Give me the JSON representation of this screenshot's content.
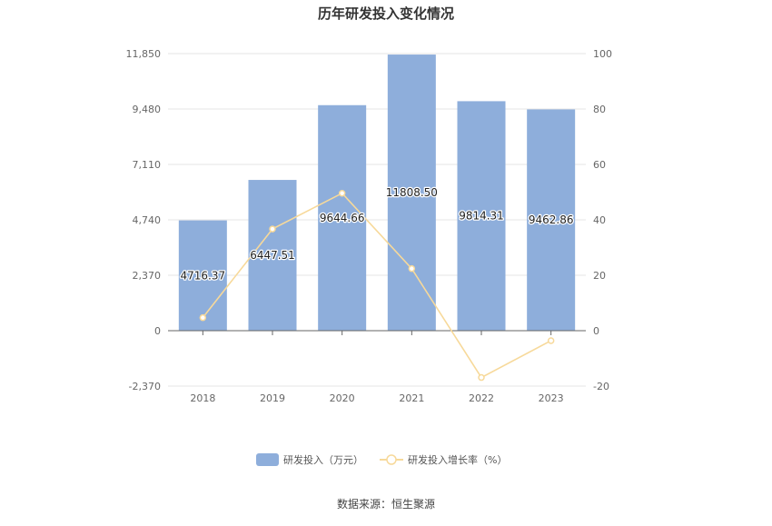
{
  "chart_data": {
    "type": "bar",
    "title": "历年研发投入变化情况",
    "categories": [
      "2018",
      "2019",
      "2020",
      "2021",
      "2022",
      "2023"
    ],
    "series": [
      {
        "name": "研发投入（万元）",
        "type": "bar",
        "axis": "left",
        "values": [
          4716.37,
          6447.51,
          9644.66,
          11808.5,
          9814.31,
          9462.86
        ],
        "labels": [
          "4716.37",
          "6447.51",
          "9644.66",
          "11808.50",
          "9814.31",
          "9462.86"
        ],
        "color": "#8eaedb"
      },
      {
        "name": "研发投入增长率（%）",
        "type": "line",
        "axis": "right",
        "values": [
          4.7,
          36.7,
          49.6,
          22.4,
          -16.9,
          -3.6
        ],
        "color": "#f7d99a"
      }
    ],
    "y_left": {
      "ylim": [
        -2370,
        11850
      ],
      "ticks": [
        -2370,
        0,
        2370,
        4740,
        7110,
        9480,
        11850
      ],
      "tick_labels": [
        "-2,370",
        "0",
        "2,370",
        "4,740",
        "7,110",
        "9,480",
        "11,850"
      ]
    },
    "y_right": {
      "ylim": [
        -20,
        100
      ],
      "ticks": [
        -20,
        0,
        20,
        40,
        60,
        80,
        100
      ],
      "tick_labels": [
        "-20",
        "0",
        "20",
        "40",
        "60",
        "80",
        "100"
      ]
    },
    "grid": true,
    "legend_position": "bottom-center",
    "source": "数据来源：恒生聚源"
  }
}
